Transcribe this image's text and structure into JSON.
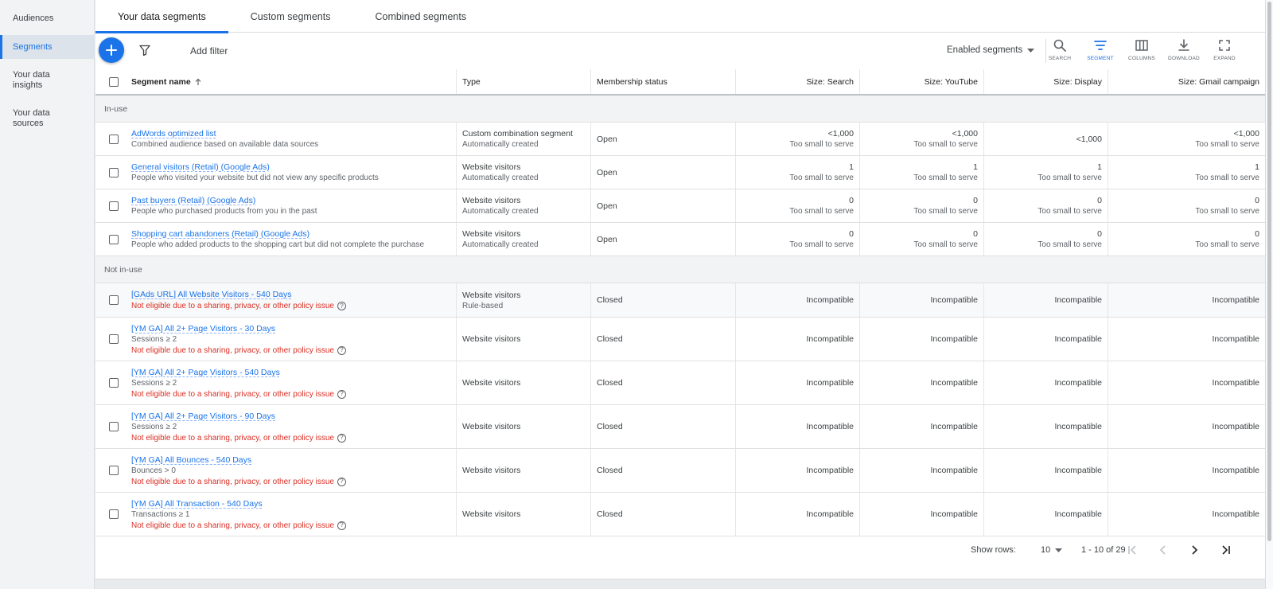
{
  "nav": {
    "items": [
      {
        "label": "Audiences"
      },
      {
        "label": "Segments"
      },
      {
        "label": "Your data insights"
      },
      {
        "label": "Your data sources"
      }
    ]
  },
  "tabs": [
    {
      "label": "Your data segments"
    },
    {
      "label": "Custom segments"
    },
    {
      "label": "Combined segments"
    }
  ],
  "toolbar": {
    "add_filter": "Add filter",
    "view_select": "Enabled segments",
    "buttons": {
      "search": "SEARCH",
      "segment": "SEGMENT",
      "columns": "COLUMNS",
      "download": "DOWNLOAD",
      "expand": "EXPAND"
    }
  },
  "table": {
    "headers": {
      "name": "Segment name",
      "type": "Type",
      "membership": "Membership status",
      "size_search": "Size: Search",
      "size_youtube": "Size: YouTube",
      "size_display": "Size: Display",
      "size_gmail": "Size: Gmail campaign"
    },
    "groups": {
      "in_use": "In-use",
      "not_in_use": "Not in-use"
    },
    "in_use_rows": [
      {
        "name": "AdWords optimized list",
        "desc": "Combined audience based on available data sources",
        "type": "Custom combination segment",
        "type_sub": "Automatically created",
        "membership": "Open",
        "s1": "<1,000",
        "s1_sub": "Too small to serve",
        "s2": "<1,000",
        "s2_sub": "Too small to serve",
        "s3": "<1,000",
        "s3_sub": "",
        "s4": "<1,000",
        "s4_sub": "Too small to serve"
      },
      {
        "name": "General visitors (Retail) (Google Ads)",
        "desc": "People who visited your website but did not view any specific products",
        "type": "Website visitors",
        "type_sub": "Automatically created",
        "membership": "Open",
        "s1": "1",
        "s1_sub": "Too small to serve",
        "s2": "1",
        "s2_sub": "Too small to serve",
        "s3": "1",
        "s3_sub": "Too small to serve",
        "s4": "1",
        "s4_sub": "Too small to serve"
      },
      {
        "name": "Past buyers (Retail) (Google Ads)",
        "desc": "People who purchased products from you in the past",
        "type": "Website visitors",
        "type_sub": "Automatically created",
        "membership": "Open",
        "s1": "0",
        "s1_sub": "Too small to serve",
        "s2": "0",
        "s2_sub": "Too small to serve",
        "s3": "0",
        "s3_sub": "Too small to serve",
        "s4": "0",
        "s4_sub": "Too small to serve"
      },
      {
        "name": "Shopping cart abandoners (Retail) (Google Ads)",
        "desc": "People who added products to the shopping cart but did not complete the purchase",
        "type": "Website visitors",
        "type_sub": "Automatically created",
        "membership": "Open",
        "s1": "0",
        "s1_sub": "Too small to serve",
        "s2": "0",
        "s2_sub": "Too small to serve",
        "s3": "0",
        "s3_sub": "Too small to serve",
        "s4": "0",
        "s4_sub": "Too small to serve"
      }
    ],
    "not_in_use_rows": [
      {
        "name": "[GAds URL] All Website Visitors - 540 Days",
        "rule": "",
        "error": "Not eligible due to a sharing, privacy, or other policy issue",
        "type": "Website visitors",
        "type_sub": "Rule-based",
        "membership": "Closed",
        "size": "Incompatible"
      },
      {
        "name": "[YM GA] All 2+ Page Visitors - 30 Days",
        "rule": "Sessions ≥ 2",
        "error": "Not eligible due to a sharing, privacy, or other policy issue",
        "type": "Website visitors",
        "type_sub": "",
        "membership": "Closed",
        "size": "Incompatible"
      },
      {
        "name": "[YM GA] All 2+ Page Visitors - 540 Days",
        "rule": "Sessions ≥ 2",
        "error": "Not eligible due to a sharing, privacy, or other policy issue",
        "type": "Website visitors",
        "type_sub": "",
        "membership": "Closed",
        "size": "Incompatible"
      },
      {
        "name": "[YM GA] All 2+ Page Visitors - 90 Days",
        "rule": "Sessions ≥ 2",
        "error": "Not eligible due to a sharing, privacy, or other policy issue",
        "type": "Website visitors",
        "type_sub": "",
        "membership": "Closed",
        "size": "Incompatible"
      },
      {
        "name": "[YM GA] All Bounces - 540 Days",
        "rule": "Bounces > 0",
        "error": "Not eligible due to a sharing, privacy, or other policy issue",
        "type": "Website visitors",
        "type_sub": "",
        "membership": "Closed",
        "size": "Incompatible"
      },
      {
        "name": "[YM GA] All Transaction - 540 Days",
        "rule": "Transactions ≥ 1",
        "error": "Not eligible due to a sharing, privacy, or other policy issue",
        "type": "Website visitors",
        "type_sub": "",
        "membership": "Closed",
        "size": "Incompatible"
      }
    ]
  },
  "pagination": {
    "show_rows_label": "Show rows:",
    "rows_value": "10",
    "range": "1 - 10 of 29"
  },
  "colors": {
    "accent": "#1a73e8",
    "error": "#d93025"
  }
}
